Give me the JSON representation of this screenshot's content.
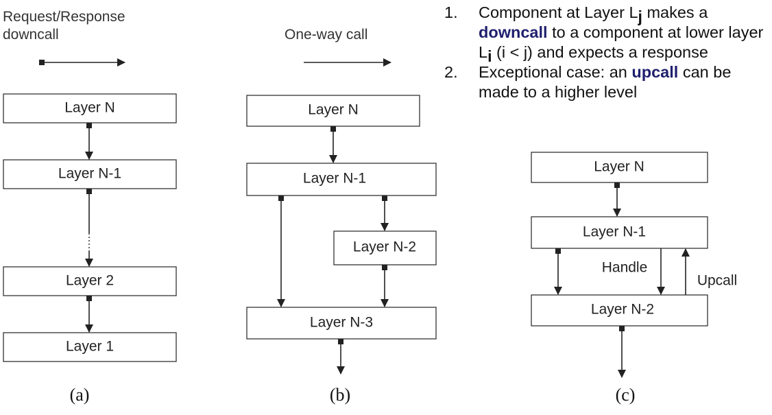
{
  "panel_a": {
    "header_line1": "Request/Response",
    "header_line2": "downcall",
    "layers": [
      "Layer N",
      "Layer N-1",
      "Layer 2",
      "Layer 1"
    ],
    "caption": "(a)"
  },
  "panel_b": {
    "header": "One-way call",
    "layers": [
      "Layer N",
      "Layer N-1",
      "Layer N-2",
      "Layer N-3"
    ],
    "caption": "(b)"
  },
  "panel_c": {
    "layers": [
      "Layer N",
      "Layer N-1",
      "Layer N-2"
    ],
    "handle_label": "Handle",
    "upcall_label": "Upcall",
    "caption": "(c)"
  },
  "notes": {
    "item1": {
      "number": "1.",
      "t1": "Component at Layer L",
      "sub_j": "j",
      "t2": " makes a ",
      "kw": "downcall",
      "t3": " to a component at lower layer L",
      "sub_i": "i",
      "t4": " (i < j) and expects a response"
    },
    "item2": {
      "number": "2.",
      "t1": "Exceptional case: an ",
      "kw": "upcall",
      "t2": " can be made to a higher level"
    }
  }
}
